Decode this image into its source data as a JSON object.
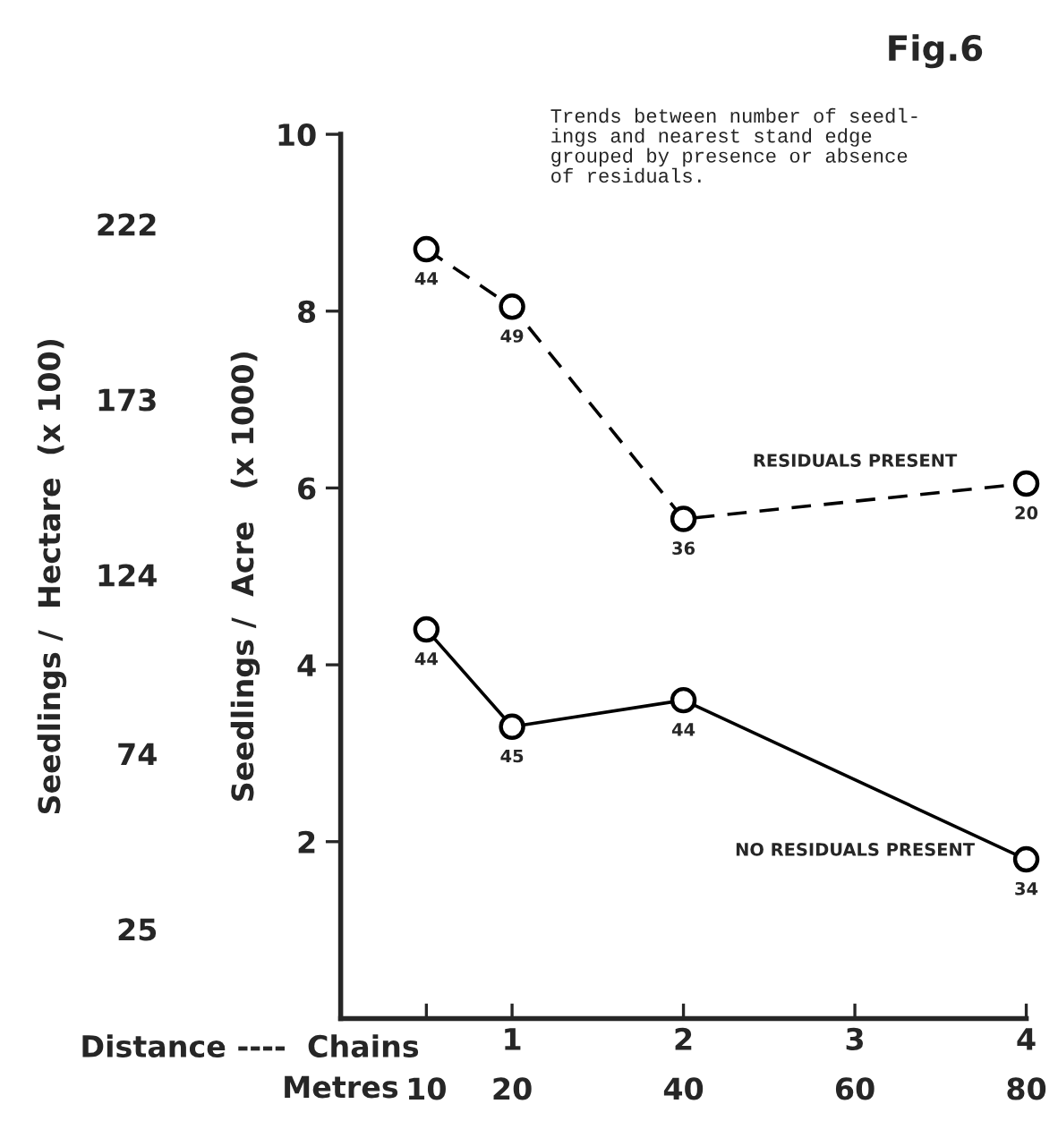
{
  "chart_data": {
    "type": "line",
    "title": "Fig.6",
    "subtitle": "Trends between number of seedl-\nings and nearest stand edge\ngrouped by presence or absence\nof residuals.",
    "xlabel": "Distance ----  Chains",
    "x2label": "Metres",
    "ylabel": "Seedlings /  Acre   (x 1000)",
    "y2label": "Seedlings /  Hectare  (x 100)",
    "x": [
      0.5,
      1,
      2,
      4
    ],
    "series": [
      {
        "name": "RESIDUALS PRESENT",
        "color": "#000000",
        "line_style": "dashed",
        "values": [
          8.7,
          8.05,
          5.65,
          6.05
        ]
      },
      {
        "name": "NO RESIDUALS PRESENT",
        "color": "#000000",
        "line_style": "solid",
        "values": [
          4.4,
          3.3,
          3.6,
          1.8
        ]
      }
    ],
    "marker": "circle",
    "xlim": [
      0,
      4
    ],
    "xticks": [
      {
        "value": 0.5,
        "label": null
      },
      1,
      2,
      3,
      4
    ],
    "x2lim": [
      0,
      80
    ],
    "x2ticks": [
      10,
      20,
      40,
      60,
      80
    ],
    "ylim": [
      0,
      10
    ],
    "yticks": [
      2,
      4,
      6,
      8,
      10
    ],
    "y2lim": [
      0,
      247.1
    ],
    "y2ticks": [
      25,
      74,
      124,
      173,
      222
    ],
    "annotations": [
      {
        "text": "44",
        "x": 0.5,
        "y": 8.7
      },
      {
        "text": "49",
        "x": 1,
        "y": 8.05
      },
      {
        "text": "36",
        "x": 2,
        "y": 5.65
      },
      {
        "text": "20",
        "x": 4,
        "y": 6.05
      },
      {
        "text": "44",
        "x": 0.5,
        "y": 4.4
      },
      {
        "text": "45",
        "x": 1,
        "y": 3.3
      },
      {
        "text": "44",
        "x": 2,
        "y": 3.6
      },
      {
        "text": "34",
        "x": 4,
        "y": 1.8
      }
    ],
    "grid": false,
    "legend": false
  }
}
